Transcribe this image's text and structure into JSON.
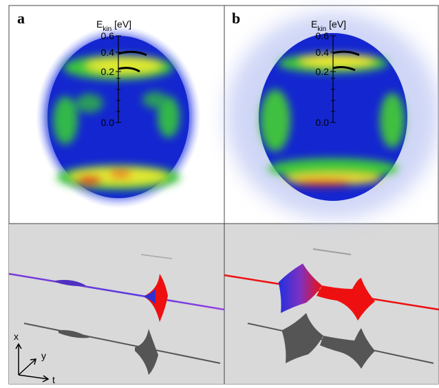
{
  "panels": [
    {
      "label": "a",
      "axis": {
        "title": "E",
        "subscript": "kin",
        "unit": "[eV]",
        "ticks": [
          "0.6",
          "0.4",
          "0.2",
          "0.0"
        ]
      }
    },
    {
      "label": "b",
      "axis": {
        "title": "E",
        "subscript": "kin",
        "unit": "[eV]",
        "ticks": [
          "0.6",
          "0.4",
          "0.2",
          "0.0"
        ]
      }
    }
  ],
  "axes_icon": {
    "x": "x",
    "y": "y",
    "t": "t"
  }
}
